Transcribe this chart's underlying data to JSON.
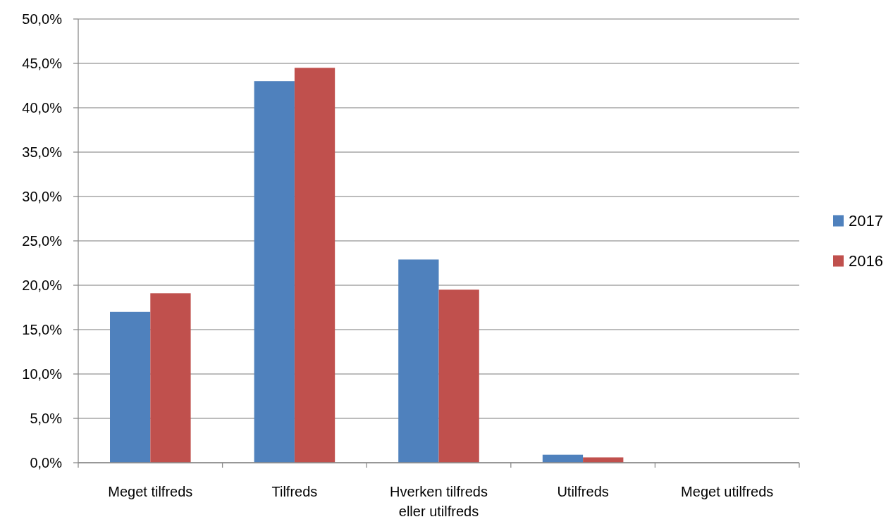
{
  "chart_data": {
    "type": "bar",
    "categories": [
      "Meget tilfreds",
      "Tilfreds",
      "Hverken tilfreds eller utilfreds",
      "Utilfreds",
      "Meget utilfreds"
    ],
    "series": [
      {
        "name": "2017",
        "color": "#4f81bd",
        "values": [
          17.0,
          43.0,
          22.9,
          0.9,
          0
        ]
      },
      {
        "name": "2016",
        "color": "#c0504d",
        "values": [
          19.1,
          44.5,
          19.5,
          0.6,
          0
        ]
      }
    ],
    "ylim": [
      0,
      50
    ],
    "yticks": [
      {
        "value": 0,
        "label": "0,0%"
      },
      {
        "value": 5,
        "label": "5,0%"
      },
      {
        "value": 10,
        "label": "10,0%"
      },
      {
        "value": 15,
        "label": "15,0%"
      },
      {
        "value": 20,
        "label": "20,0%"
      },
      {
        "value": 25,
        "label": "25,0%"
      },
      {
        "value": 30,
        "label": "30,0%"
      },
      {
        "value": 35,
        "label": "35,0%"
      },
      {
        "value": 40,
        "label": "40,0%"
      },
      {
        "value": 45,
        "label": "45,0%"
      },
      {
        "value": 50,
        "label": "50,0%"
      }
    ],
    "grid": "y",
    "legend": "right"
  }
}
